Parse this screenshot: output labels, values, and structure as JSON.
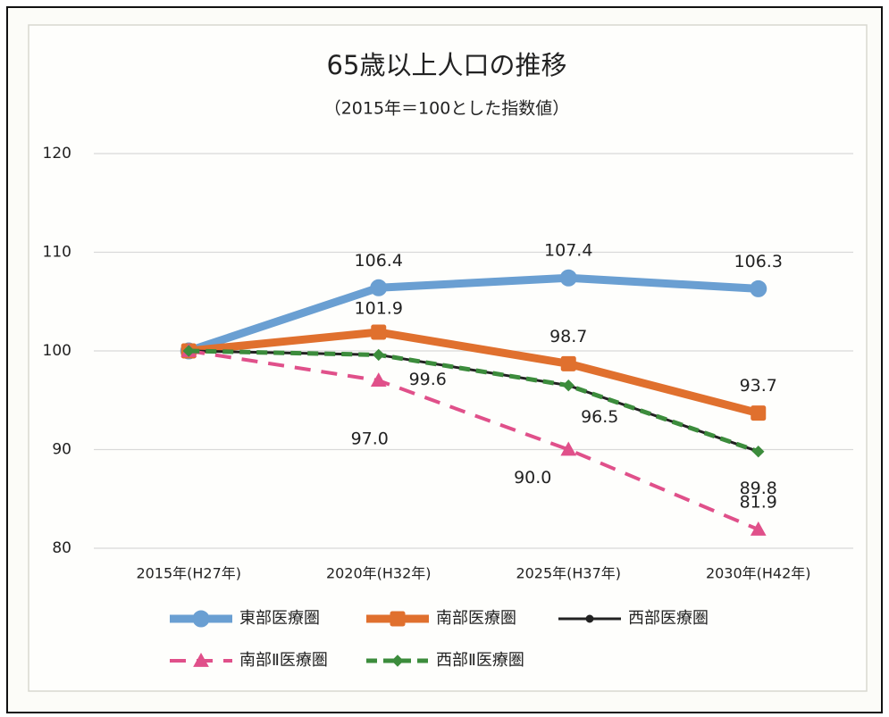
{
  "chart_data": {
    "type": "line",
    "title": "65歳以上人口の推移",
    "subtitle": "（2015年＝100とした指数値）",
    "categories": [
      "2015年(H27年)",
      "2020年(H32年)",
      "2025年(H37年)",
      "2030年(H42年)"
    ],
    "ylim": [
      80,
      120
    ],
    "yticks": [
      80,
      90,
      100,
      110,
      120
    ],
    "grid": true,
    "series": [
      {
        "name": "東部医療圏",
        "color": "#6a9fd2",
        "values": [
          100,
          106.4,
          107.4,
          106.3
        ],
        "value_labels": [
          null,
          "106.4",
          "107.4",
          "106.3"
        ]
      },
      {
        "name": "南部医療圏",
        "color": "#e0702e",
        "values": [
          100,
          101.9,
          98.7,
          93.7
        ],
        "value_labels": [
          null,
          "101.9",
          "98.7",
          "93.7"
        ]
      },
      {
        "name": "西部医療圏",
        "color": "#222222",
        "values": [
          100,
          99.6,
          96.5,
          89.8
        ]
      },
      {
        "name": "南部Ⅱ医療圏",
        "color": "#e0508a",
        "values": [
          100,
          97.0,
          90.0,
          81.9
        ],
        "value_labels": [
          null,
          "97.0",
          "90.0",
          "81.9"
        ]
      },
      {
        "name": "西部Ⅱ医療圏",
        "color": "#3c8c3c",
        "values": [
          100,
          99.6,
          96.5,
          89.8
        ],
        "value_labels": [
          null,
          "99.6",
          "96.5",
          "89.8"
        ]
      }
    ]
  }
}
